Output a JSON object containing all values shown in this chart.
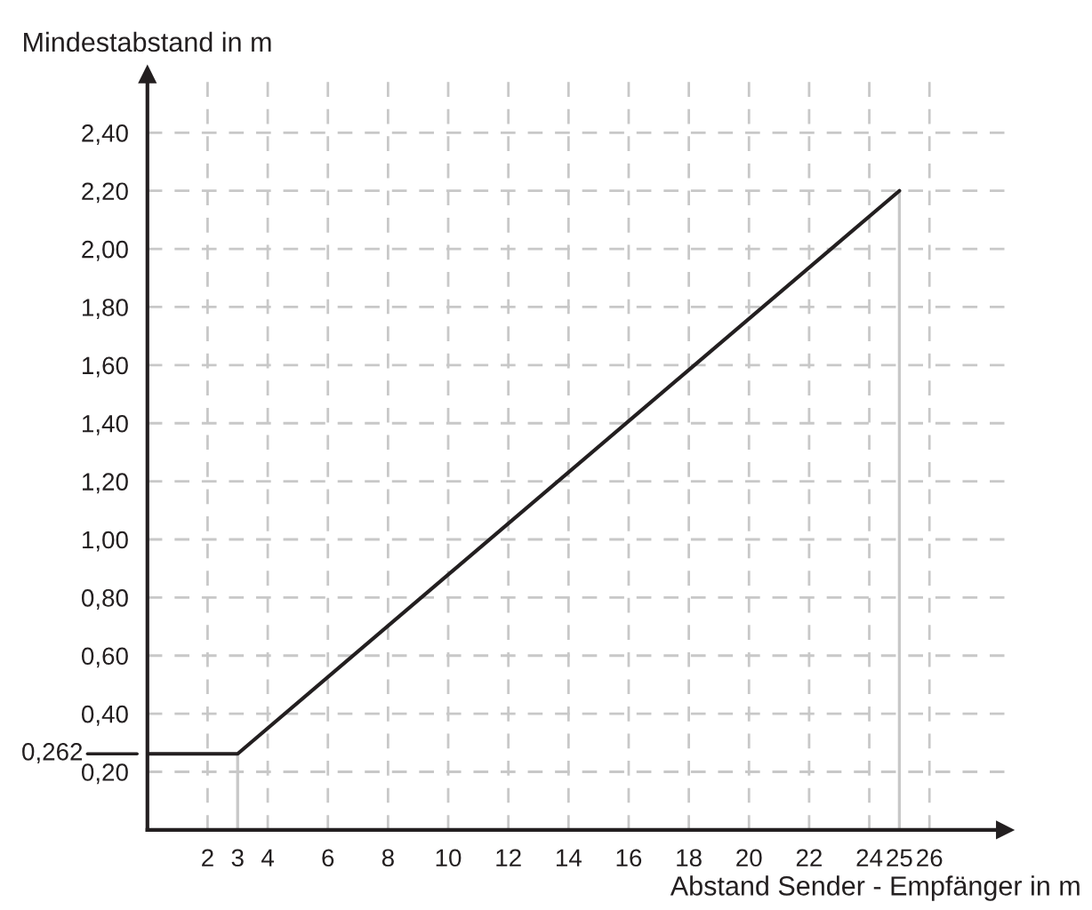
{
  "chart_data": {
    "type": "line",
    "xlabel": "Abstand Sender - Empfänger in m",
    "ylabel": "Mindestabstand in m",
    "series": [
      {
        "color": "#231f20",
        "x": [
          0,
          3,
          25
        ],
        "values": [
          0.262,
          0.262,
          2.2
        ]
      }
    ],
    "xlim": [
      0,
      28.5
    ],
    "ylim": [
      0,
      2.6
    ],
    "xticks": [
      2,
      3,
      4,
      6,
      8,
      10,
      12,
      14,
      16,
      18,
      20,
      22,
      24,
      25,
      26
    ],
    "yticks": [
      {
        "value": 0.2,
        "label": "0,20"
      },
      {
        "value": 0.4,
        "label": "0,40"
      },
      {
        "value": 0.6,
        "label": "0,60"
      },
      {
        "value": 0.8,
        "label": "0,80"
      },
      {
        "value": 1.0,
        "label": "1,00"
      },
      {
        "value": 1.2,
        "label": "1,20"
      },
      {
        "value": 1.4,
        "label": "1,40"
      },
      {
        "value": 1.6,
        "label": "1,60"
      },
      {
        "value": 1.8,
        "label": "1,80"
      },
      {
        "value": 2.0,
        "label": "2,00"
      },
      {
        "value": 2.2,
        "label": "2,20"
      },
      {
        "value": 2.4,
        "label": "2,40"
      }
    ],
    "ref_lines": [
      {
        "axis": "x",
        "value": 3,
        "color": "#c8c8c8"
      },
      {
        "axis": "x",
        "value": 25,
        "color": "#c8c8c8"
      },
      {
        "axis": "y",
        "value": 0.262,
        "label": "0,262",
        "color": "#231f20"
      }
    ],
    "grid": true,
    "legend": false,
    "marker": "none",
    "line_style": "solid"
  }
}
